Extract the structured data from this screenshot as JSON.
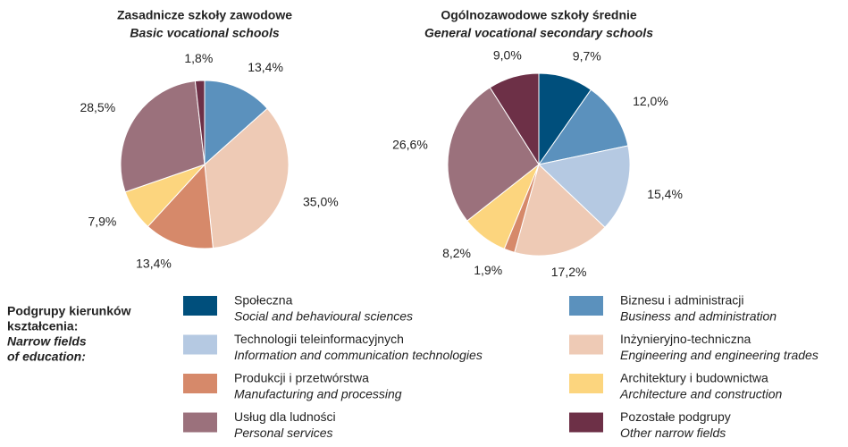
{
  "chart_data": [
    {
      "type": "pie",
      "title": "Zasadnicze szkoły zawodowe",
      "subtitle": "Basic vocational schools",
      "values": [
        13.4,
        35.0,
        13.4,
        7.9,
        28.5,
        1.8
      ],
      "value_labels": [
        "13,4%",
        "35,0%",
        "13,4%",
        "7,9%",
        "28,5%",
        "1,8%"
      ],
      "colors": [
        "#5b91bd",
        "#eecab5",
        "#d6896a",
        "#fcd57e",
        "#9b717c",
        "#6d3047"
      ]
    },
    {
      "type": "pie",
      "title": "Ogólnozawodowe szkoły średnie",
      "subtitle": "General vocational secondary schools",
      "values": [
        9.7,
        12.0,
        15.4,
        17.2,
        1.9,
        8.2,
        26.6,
        9.0
      ],
      "value_labels": [
        "9,7%",
        "12,0%",
        "15,4%",
        "17,2%",
        "1,9%",
        "8,2%",
        "26,6%",
        "9,0%"
      ],
      "colors": [
        "#004f7c",
        "#5b91bd",
        "#b5c9e2",
        "#eecab5",
        "#d6896a",
        "#fcd57e",
        "#9b717c",
        "#6d3047"
      ]
    }
  ],
  "legend": {
    "title": [
      "Podgrupy kierunków",
      "kształcenia:"
    ],
    "subtitle": [
      "Narrow fields",
      "of education:"
    ],
    "items": [
      {
        "name": "Społeczna",
        "name_en": "Social and behavioural sciences",
        "color": "#004f7c"
      },
      {
        "name": "Biznesu i administracji",
        "name_en": "Business and administration",
        "color": "#5b91bd"
      },
      {
        "name": "Technologii teleinformacyjnych",
        "name_en": "Information and communication technologies",
        "color": "#b5c9e2"
      },
      {
        "name": "Inżynieryjno-techniczna",
        "name_en": "Engineering and engineering trades",
        "color": "#eecab5"
      },
      {
        "name": "Produkcji i przetwórstwa",
        "name_en": "Manufacturing and processing",
        "color": "#d6896a"
      },
      {
        "name": "Architektury i budownictwa",
        "name_en": "Architecture and construction",
        "color": "#fcd57e"
      },
      {
        "name": "Usług dla ludności",
        "name_en": "Personal services",
        "color": "#9b717c"
      },
      {
        "name": "Pozostałe podgrupy",
        "name_en": "Other narrow fields",
        "color": "#6d3047"
      }
    ]
  }
}
